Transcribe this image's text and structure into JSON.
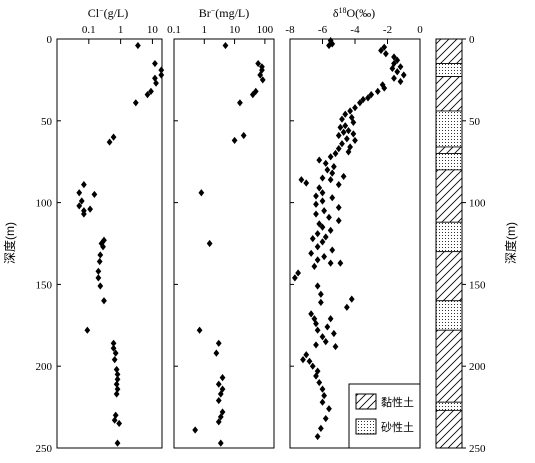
{
  "chart_data": [
    {
      "type": "scatter",
      "panel": "chloride",
      "title_main": "Cl",
      "title_sup": "−",
      "title_unit": "(g/L)",
      "x_scale": "log",
      "xlim": [
        0.01,
        20
      ],
      "x_ticks": [
        0.1,
        1,
        10
      ],
      "x_tick_labels": [
        "0.1",
        "1",
        "10"
      ],
      "ylim": [
        0,
        250
      ],
      "ylabel": "深度(m)",
      "points": [
        [
          3.5,
          4
        ],
        [
          12,
          15
        ],
        [
          19,
          19
        ],
        [
          19,
          22
        ],
        [
          12,
          24
        ],
        [
          13,
          27
        ],
        [
          9,
          32
        ],
        [
          7,
          34
        ],
        [
          3,
          39
        ],
        [
          0.6,
          60
        ],
        [
          0.45,
          63
        ],
        [
          0.07,
          89
        ],
        [
          0.05,
          94
        ],
        [
          0.15,
          95
        ],
        [
          0.06,
          99
        ],
        [
          0.05,
          102
        ],
        [
          0.11,
          104
        ],
        [
          0.07,
          105
        ],
        [
          0.07,
          107
        ],
        [
          0.3,
          123
        ],
        [
          0.25,
          125
        ],
        [
          0.28,
          127
        ],
        [
          0.23,
          132
        ],
        [
          0.22,
          136
        ],
        [
          0.2,
          142
        ],
        [
          0.2,
          146
        ],
        [
          0.23,
          151
        ],
        [
          0.3,
          160
        ],
        [
          0.09,
          178
        ],
        [
          0.6,
          186
        ],
        [
          0.6,
          189
        ],
        [
          0.7,
          192
        ],
        [
          0.65,
          196
        ],
        [
          0.75,
          202
        ],
        [
          0.8,
          205
        ],
        [
          0.8,
          208
        ],
        [
          0.75,
          211
        ],
        [
          0.8,
          214
        ],
        [
          0.75,
          217
        ],
        [
          0.7,
          230
        ],
        [
          0.65,
          233
        ],
        [
          0.9,
          235
        ],
        [
          0.8,
          247
        ]
      ]
    },
    {
      "type": "scatter",
      "panel": "bromide",
      "title_main": "Br",
      "title_sup": "−",
      "title_unit": "(mg/L)",
      "x_scale": "log",
      "xlim": [
        0.1,
        200
      ],
      "x_ticks": [
        0.1,
        1,
        10,
        100
      ],
      "x_tick_labels": [
        "0.1",
        "1",
        "10",
        "100"
      ],
      "ylim": [
        0,
        250
      ],
      "points": [
        [
          5,
          4
        ],
        [
          60,
          15
        ],
        [
          80,
          17
        ],
        [
          80,
          19
        ],
        [
          70,
          22
        ],
        [
          85,
          25
        ],
        [
          50,
          32
        ],
        [
          40,
          34
        ],
        [
          15,
          39
        ],
        [
          20,
          59
        ],
        [
          10,
          62
        ],
        [
          0.8,
          94
        ],
        [
          1.5,
          125
        ],
        [
          0.7,
          178
        ],
        [
          3,
          186
        ],
        [
          2.5,
          192
        ],
        [
          4,
          207
        ],
        [
          3,
          211
        ],
        [
          4,
          214
        ],
        [
          3.5,
          217
        ],
        [
          3,
          221
        ],
        [
          4,
          228
        ],
        [
          3.5,
          231
        ],
        [
          3,
          234
        ],
        [
          0.5,
          239
        ],
        [
          3.5,
          247
        ]
      ]
    },
    {
      "type": "scatter",
      "panel": "oxygen18",
      "title_prefix": "δ",
      "title_sup": "18",
      "title_suffix": "O(‰)",
      "x_scale": "linear",
      "xlim": [
        -8,
        0
      ],
      "x_ticks": [
        -8,
        -6,
        -4,
        -2,
        0
      ],
      "x_tick_labels": [
        "-8",
        "-6",
        "-4",
        "-2",
        "0"
      ],
      "ylim": [
        0,
        250
      ],
      "points": [
        [
          -5.5,
          1
        ],
        [
          -5.4,
          3
        ],
        [
          -5.6,
          4
        ],
        [
          -2.2,
          5
        ],
        [
          -2.4,
          7
        ],
        [
          -2.1,
          9
        ],
        [
          -1.6,
          11
        ],
        [
          -1.4,
          13
        ],
        [
          -1.6,
          15
        ],
        [
          -1.2,
          17
        ],
        [
          -1.7,
          18
        ],
        [
          -1.4,
          20
        ],
        [
          -1.0,
          22
        ],
        [
          -1.6,
          24
        ],
        [
          -1.2,
          26
        ],
        [
          -2.3,
          28
        ],
        [
          -2.2,
          30
        ],
        [
          -2.6,
          32
        ],
        [
          -3.0,
          34
        ],
        [
          -3.2,
          36
        ],
        [
          -3.5,
          37
        ],
        [
          -3.7,
          39
        ],
        [
          -4.0,
          42
        ],
        [
          -4.3,
          44
        ],
        [
          -4.6,
          46
        ],
        [
          -4.2,
          48
        ],
        [
          -4.8,
          49
        ],
        [
          -4.1,
          51
        ],
        [
          -4.6,
          53
        ],
        [
          -4.9,
          54
        ],
        [
          -4.4,
          56
        ],
        [
          -4.7,
          57
        ],
        [
          -4.1,
          58
        ],
        [
          -5.0,
          59
        ],
        [
          -4.5,
          61
        ],
        [
          -4.0,
          62
        ],
        [
          -4.8,
          64
        ],
        [
          -4.3,
          66
        ],
        [
          -5.0,
          67
        ],
        [
          -4.4,
          69
        ],
        [
          -5.2,
          70
        ],
        [
          -5.5,
          72
        ],
        [
          -6.2,
          74
        ],
        [
          -5.8,
          76
        ],
        [
          -5.3,
          78
        ],
        [
          -5.7,
          80
        ],
        [
          -5.4,
          82
        ],
        [
          -4.7,
          84
        ],
        [
          -6.0,
          85
        ],
        [
          -5.5,
          86
        ],
        [
          -7.3,
          86
        ],
        [
          -7.0,
          88
        ],
        [
          -5.0,
          89
        ],
        [
          -6.2,
          91
        ],
        [
          -6.0,
          94
        ],
        [
          -6.4,
          96
        ],
        [
          -5.4,
          97
        ],
        [
          -6.0,
          99
        ],
        [
          -6.4,
          101
        ],
        [
          -5.0,
          103
        ],
        [
          -5.9,
          105
        ],
        [
          -6.4,
          107
        ],
        [
          -5.6,
          109
        ],
        [
          -5.0,
          111
        ],
        [
          -6.2,
          113
        ],
        [
          -6.0,
          115
        ],
        [
          -5.5,
          117
        ],
        [
          -6.3,
          119
        ],
        [
          -5.8,
          121
        ],
        [
          -6.6,
          122
        ],
        [
          -6.0,
          124
        ],
        [
          -6.3,
          127
        ],
        [
          -5.4,
          129
        ],
        [
          -6.7,
          131
        ],
        [
          -5.9,
          133
        ],
        [
          -6.3,
          135
        ],
        [
          -5.5,
          137
        ],
        [
          -4.9,
          137
        ],
        [
          -6.5,
          139
        ],
        [
          -7.5,
          143
        ],
        [
          -7.7,
          146
        ],
        [
          -6.3,
          151
        ],
        [
          -6.1,
          156
        ],
        [
          -4.2,
          159
        ],
        [
          -6.1,
          161
        ],
        [
          -4.5,
          164
        ],
        [
          -6.7,
          168
        ],
        [
          -6.5,
          171
        ],
        [
          -5.5,
          171
        ],
        [
          -6.4,
          174
        ],
        [
          -5.7,
          176
        ],
        [
          -6.3,
          178
        ],
        [
          -5.3,
          180
        ],
        [
          -6.0,
          182
        ],
        [
          -5.8,
          185
        ],
        [
          -6.4,
          187
        ],
        [
          -5.2,
          188
        ],
        [
          -7.0,
          193
        ],
        [
          -7.2,
          196
        ],
        [
          -6.8,
          197
        ],
        [
          -6.6,
          200
        ],
        [
          -6.3,
          203
        ],
        [
          -6.4,
          206
        ],
        [
          -6.2,
          210
        ],
        [
          -6.0,
          214
        ],
        [
          -5.9,
          218
        ],
        [
          -6.0,
          222
        ],
        [
          -5.6,
          226
        ],
        [
          -5.8,
          232
        ],
        [
          -6.1,
          238
        ],
        [
          -6.3,
          243
        ]
      ]
    },
    {
      "type": "lithology",
      "panel": "lithology",
      "ylim": [
        0,
        250
      ],
      "y_ticks": [
        0,
        50,
        100,
        150,
        200,
        250
      ],
      "y_tick_labels": [
        "0",
        "50",
        "100",
        "150",
        "200",
        "250"
      ],
      "ylabel": "深度(m)",
      "layers": [
        {
          "top": 0,
          "bottom": 15,
          "type": "clay"
        },
        {
          "top": 15,
          "bottom": 23,
          "type": "sand"
        },
        {
          "top": 23,
          "bottom": 44,
          "type": "clay"
        },
        {
          "top": 44,
          "bottom": 66,
          "type": "sand"
        },
        {
          "top": 66,
          "bottom": 70,
          "type": "clay"
        },
        {
          "top": 70,
          "bottom": 80,
          "type": "sand"
        },
        {
          "top": 80,
          "bottom": 112,
          "type": "clay"
        },
        {
          "top": 112,
          "bottom": 130,
          "type": "sand"
        },
        {
          "top": 130,
          "bottom": 160,
          "type": "clay"
        },
        {
          "top": 160,
          "bottom": 178,
          "type": "sand"
        },
        {
          "top": 178,
          "bottom": 222,
          "type": "clay"
        },
        {
          "top": 222,
          "bottom": 227,
          "type": "sand"
        },
        {
          "top": 227,
          "bottom": 250,
          "type": "clay"
        }
      ]
    }
  ],
  "legend": {
    "items": [
      {
        "type": "clay",
        "label": "黏性土"
      },
      {
        "type": "sand",
        "label": "砂性土"
      }
    ]
  },
  "shared_y_ticks": [
    0,
    50,
    100,
    150,
    200,
    250
  ],
  "shared_y_tick_labels": [
    "0",
    "50",
    "100",
    "150",
    "200",
    "250"
  ],
  "colors": {
    "ink": "#000000",
    "background": "#ffffff"
  }
}
